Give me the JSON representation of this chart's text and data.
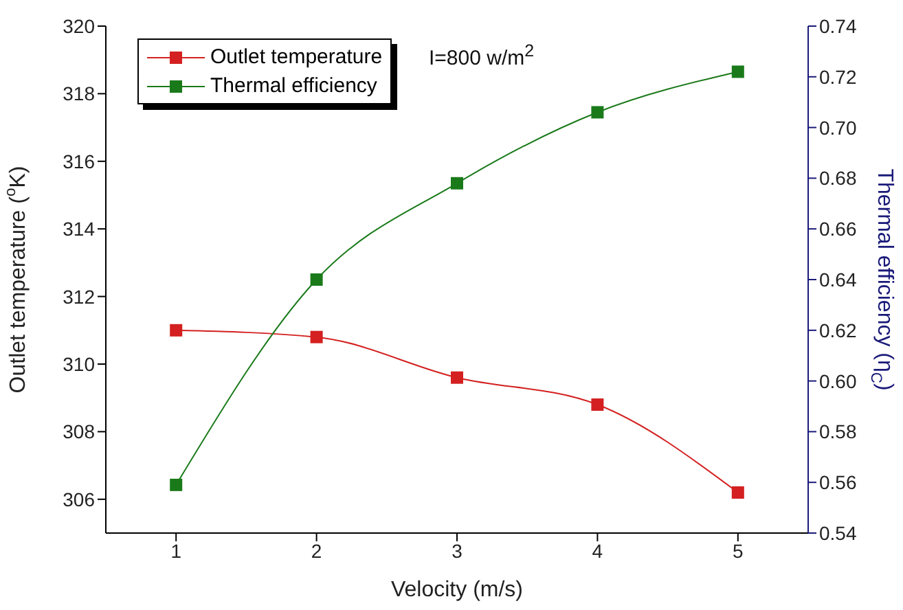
{
  "chart_data": {
    "type": "line",
    "xlabel": "Velocity (m/s)",
    "ylabel": "Outlet temperature ($^{o}$K)",
    "y2label": "Thermal efficiency (η$_{C}$)",
    "annotations": [
      "I=800 w/m$^{2}$"
    ],
    "x": [
      1,
      2,
      3,
      4,
      5
    ],
    "series": [
      {
        "name": "Outlet temperature",
        "color": "#d42020",
        "values": [
          311.0,
          310.8,
          309.6,
          308.8,
          306.2
        ]
      },
      {
        "name": "Thermal efficiency",
        "color": "#1a7a1a",
        "values": [
          0.559,
          0.64,
          0.678,
          0.706,
          0.722
        ],
        "axis": "y2"
      }
    ],
    "xlim": [
      0.5,
      5.5
    ],
    "xticks": [
      1,
      2,
      3,
      4,
      5
    ],
    "ylim": [
      305,
      320
    ],
    "yticks": [
      306,
      308,
      310,
      312,
      314,
      316,
      318,
      320
    ],
    "y2lim": [
      0.54,
      0.74
    ],
    "y2ticks": [
      {
        "value": 0.54,
        "label": "0.54"
      },
      {
        "value": 0.56,
        "label": "0.56"
      },
      {
        "value": 0.58,
        "label": "0.58"
      },
      {
        "value": 0.6,
        "label": "0.60"
      },
      {
        "value": 0.62,
        "label": "0.62"
      },
      {
        "value": 0.64,
        "label": "0.64"
      },
      {
        "value": 0.66,
        "label": "0.66"
      },
      {
        "value": 0.68,
        "label": "0.68"
      },
      {
        "value": 0.7,
        "label": "0.70"
      },
      {
        "value": 0.72,
        "label": "0.72"
      },
      {
        "value": 0.74,
        "label": "0.74"
      }
    ],
    "legend": "top left",
    "marker": "square",
    "line_style": "solid",
    "grid": false
  }
}
